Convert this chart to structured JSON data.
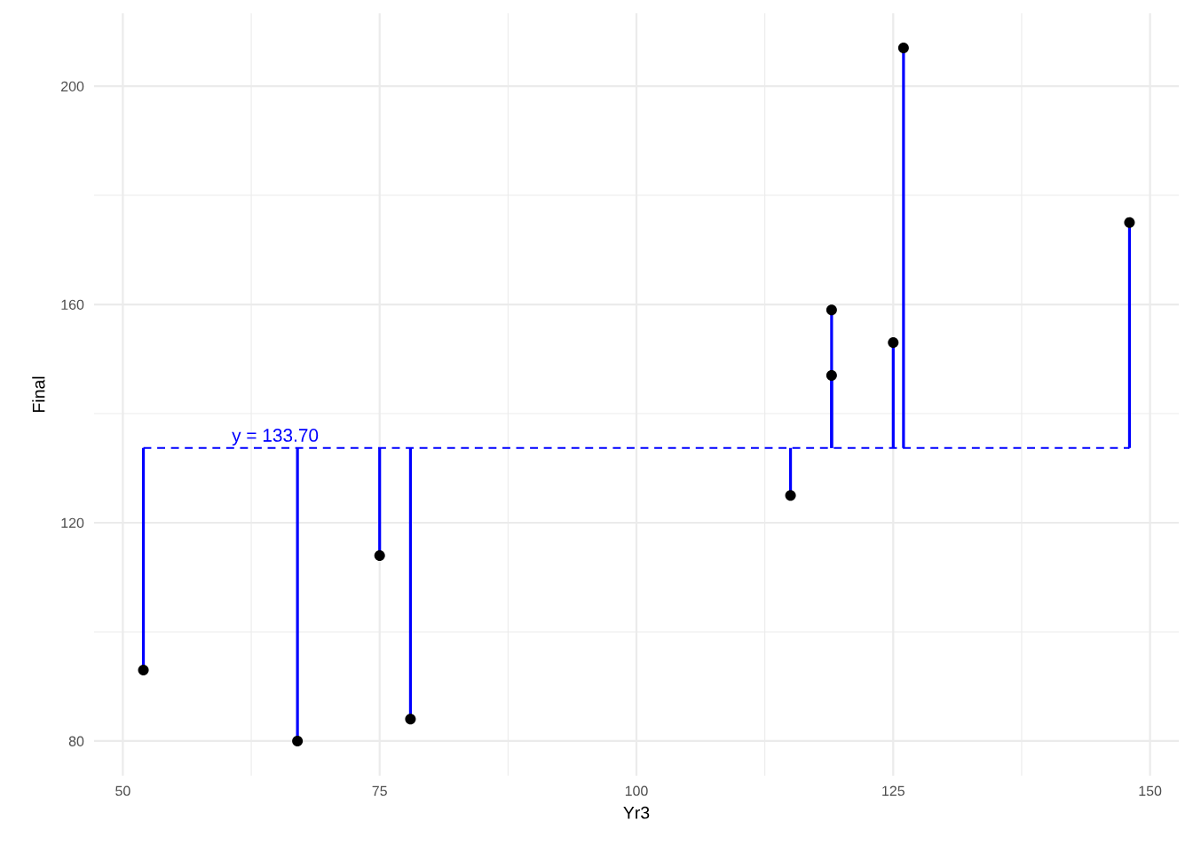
{
  "chart_data": {
    "type": "scatter",
    "xlabel": "Yr3",
    "ylabel": "Final",
    "x": [
      52,
      67,
      75,
      78,
      115,
      119,
      119,
      125,
      126,
      148
    ],
    "values": [
      93,
      80,
      114,
      84,
      125,
      147,
      159,
      153,
      207,
      175
    ],
    "errors": [
      [
        93,
        133.7
      ],
      [
        80,
        133.7
      ],
      [
        114,
        133.7
      ],
      [
        84,
        133.7
      ],
      [
        125,
        133.7
      ],
      [
        133.7,
        147
      ],
      [
        133.7,
        159
      ],
      [
        133.7,
        153
      ],
      [
        133.7,
        207
      ],
      [
        133.7,
        175
      ]
    ],
    "color": "#0000ff",
    "colors": [
      "#000000",
      "#000000",
      "#000000",
      "#000000",
      "#000000",
      "#000000",
      "#000000",
      "#000000",
      "#000000",
      "#000000"
    ],
    "marker": "circle",
    "ref_lines": [
      {
        "axis": "y",
        "value": 133.7,
        "label": "y = 133.70",
        "color": "#0000ff",
        "line_style": "dashed"
      }
    ],
    "xlim": [
      47.2,
      152.8
    ],
    "ylim": [
      73.65,
      213.35
    ],
    "xticks": [
      50,
      {
        "value": 62.5,
        "label": null
      },
      75,
      {
        "value": 87.5,
        "label": null
      },
      100,
      {
        "value": 112.5,
        "label": null
      },
      125,
      {
        "value": 137.5,
        "label": null
      },
      150
    ],
    "yticks": [
      80,
      {
        "value": 100,
        "label": null
      },
      120,
      {
        "value": 140,
        "label": null
      },
      160,
      {
        "value": 180,
        "label": null
      },
      200
    ],
    "grid": true
  }
}
